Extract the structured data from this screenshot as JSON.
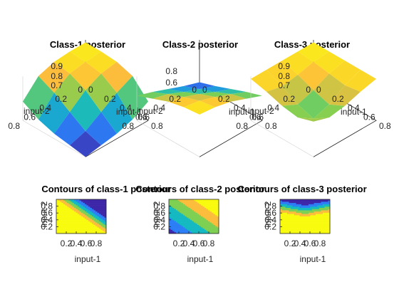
{
  "chart_data": [
    {
      "type": "surface",
      "title": "Class-1 posterior",
      "xlabel": "input-1",
      "ylabel": "input-2",
      "zticks": [
        "0.9",
        "0.8",
        "0.7"
      ],
      "xticks": [
        "0",
        "0.2",
        "0.4",
        "0.6",
        "0.8"
      ],
      "yticks": [
        "0",
        "0.2",
        "0.4",
        "0.6",
        "0.8"
      ],
      "zlim": [
        0.6,
        0.95
      ],
      "grid": true,
      "colormap": "parula",
      "z_grid": [
        [
          0.93,
          0.93,
          0.92,
          0.88,
          0.75
        ],
        [
          0.93,
          0.92,
          0.9,
          0.82,
          0.68
        ],
        [
          0.92,
          0.9,
          0.84,
          0.74,
          0.64
        ],
        [
          0.88,
          0.82,
          0.74,
          0.66,
          0.62
        ],
        [
          0.75,
          0.68,
          0.64,
          0.62,
          0.6
        ]
      ]
    },
    {
      "type": "surface",
      "title": "Class-2 posterior",
      "xlabel": "input-1",
      "ylabel": "input-2",
      "zticks": [
        "0.8",
        "0.6"
      ],
      "xticks": [
        "0",
        "0.2",
        "0.4",
        "0.6",
        "0.8"
      ],
      "yticks": [
        "0",
        "0.2",
        "0.4",
        "0.6",
        "0.8"
      ],
      "zlim": [
        0.4,
        0.9
      ],
      "grid": true,
      "colormap": "parula",
      "z_grid": [
        [
          0.42,
          0.48,
          0.55,
          0.62,
          0.68
        ],
        [
          0.48,
          0.55,
          0.62,
          0.7,
          0.75
        ],
        [
          0.55,
          0.62,
          0.7,
          0.77,
          0.82
        ],
        [
          0.62,
          0.7,
          0.77,
          0.83,
          0.86
        ],
        [
          0.68,
          0.75,
          0.82,
          0.86,
          0.88
        ]
      ]
    },
    {
      "type": "surface",
      "title": "Class-3 posterior",
      "xlabel": "input-1",
      "ylabel": "input-2",
      "zticks": [
        "0.9",
        "0.8",
        "0.7"
      ],
      "xticks": [
        "0",
        "0.2",
        "0.4",
        "0.6",
        "0.8"
      ],
      "yticks": [
        "0",
        "0.2",
        "0.4",
        "0.6",
        "0.8"
      ],
      "zlim": [
        0.6,
        0.95
      ],
      "grid": true,
      "colormap": "parula",
      "z_grid": [
        [
          0.93,
          0.93,
          0.93,
          0.93,
          0.93
        ],
        [
          0.93,
          0.92,
          0.9,
          0.88,
          0.9
        ],
        [
          0.93,
          0.89,
          0.84,
          0.8,
          0.86
        ],
        [
          0.93,
          0.87,
          0.8,
          0.76,
          0.84
        ],
        [
          0.93,
          0.9,
          0.86,
          0.84,
          0.88
        ]
      ]
    },
    {
      "type": "contour",
      "title": "Contours of class-1 posterior",
      "xlabel": "input-1",
      "ylabel": "input-2",
      "xticks": [
        "0.2",
        "0.4",
        "0.6",
        "0.8"
      ],
      "yticks": [
        "0.2",
        "0.4",
        "0.6",
        "0.8"
      ],
      "xlim": [
        0,
        1
      ],
      "ylim": [
        0,
        1
      ],
      "levels": [
        0.5,
        0.6,
        0.7,
        0.8,
        0.9
      ],
      "note_visible": "filled contours, yellow region lower-left, blue in upper-right corner"
    },
    {
      "type": "contour",
      "title": "Contours of class-2 posterior",
      "xlabel": "input-1",
      "ylabel": "input-2",
      "xticks": [
        "0.2",
        "0.4",
        "0.6",
        "0.8"
      ],
      "yticks": [
        "0.2",
        "0.4",
        "0.6",
        "0.8"
      ],
      "xlim": [
        0,
        1
      ],
      "ylim": [
        0,
        1
      ],
      "levels": [
        0.5,
        0.6,
        0.7,
        0.8,
        0.9
      ]
    },
    {
      "type": "contour",
      "title": "Contours of class-3 posterior",
      "xlabel": "input-1",
      "ylabel": "input-2",
      "xticks": [
        "0.2",
        "0.4",
        "0.6",
        "0.8"
      ],
      "yticks": [
        "0.2",
        "0.4",
        "0.6",
        "0.8"
      ],
      "xlim": [
        0,
        1
      ],
      "ylim": [
        0,
        1
      ],
      "levels": [
        0.5,
        0.6,
        0.7,
        0.8,
        0.9
      ]
    }
  ],
  "colors": {
    "yellow": "#f9fb0e",
    "blue_dark": "#3e26a8",
    "parula_stops": [
      "#3e26a8",
      "#2c7ef7",
      "#14b9c1",
      "#7ed052",
      "#fdbd3c",
      "#f9fb0e"
    ]
  }
}
